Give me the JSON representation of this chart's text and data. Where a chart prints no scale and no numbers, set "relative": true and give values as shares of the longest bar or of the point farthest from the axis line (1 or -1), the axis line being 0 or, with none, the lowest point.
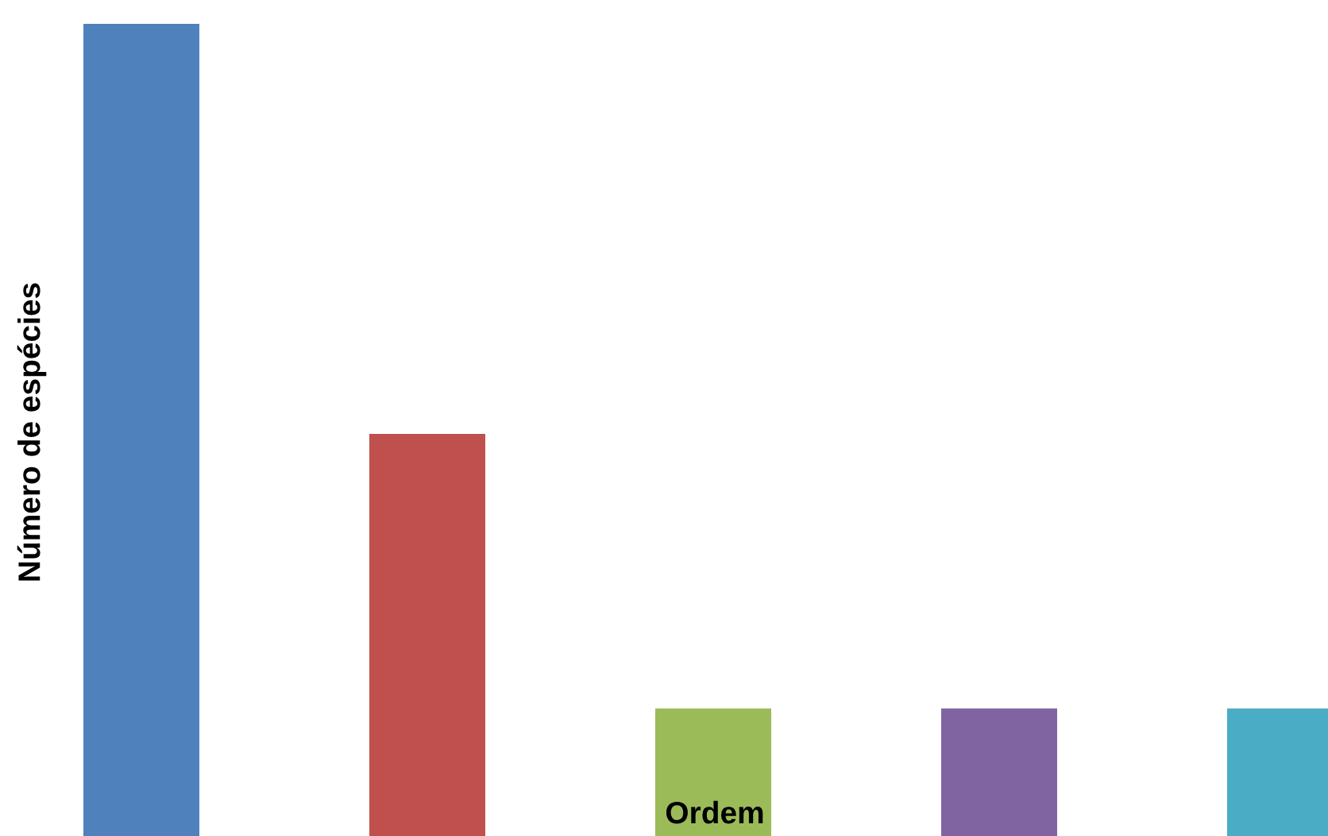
{
  "chart_data": {
    "type": "bar",
    "relative": true,
    "xlabel": "Ordem",
    "ylabel": "Número de espécies",
    "categories": [
      null,
      null,
      null,
      null,
      null
    ],
    "values": [
      1,
      0.495,
      0.157,
      0.157,
      0.157
    ],
    "colors": [
      "#4f81bd",
      "#c0504d",
      "#9bbb59",
      "#8064a2",
      "#4bacc6"
    ],
    "grid": false,
    "legend": false
  }
}
